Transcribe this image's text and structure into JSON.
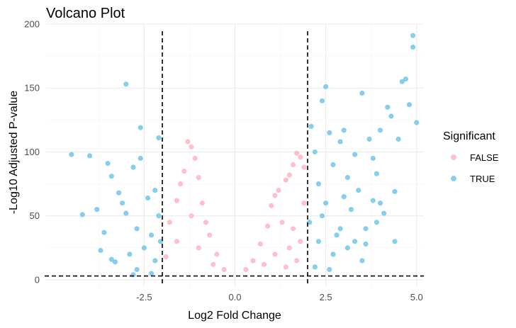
{
  "chart_data": {
    "type": "scatter",
    "title": "Volcano Plot",
    "xlabel": "Log2 Fold Change",
    "ylabel": "-Log10 Adjusted P-value",
    "xlim": [
      -5.2,
      5.2
    ],
    "ylim": [
      -5,
      200
    ],
    "x_ticks": [
      -2.5,
      0.0,
      2.5,
      5.0
    ],
    "x_tick_labels": [
      "-2.5",
      "0.0",
      "2.5",
      "5.0"
    ],
    "y_ticks": [
      0,
      50,
      100,
      150,
      200
    ],
    "y_tick_labels": [
      "0",
      "50",
      "100",
      "150",
      "200"
    ],
    "grid": true,
    "vlines": [
      -2,
      2
    ],
    "hline": 3,
    "legend": {
      "title": "Significant",
      "position": "right",
      "entries": [
        {
          "label": "FALSE",
          "color": "#ffc0cb"
        },
        {
          "label": "TRUE",
          "color": "#87ceeb"
        }
      ]
    },
    "series": [
      {
        "name": "FALSE",
        "color": "#ffc0cb",
        "points": [
          [
            -1.8,
            45
          ],
          [
            -1.6,
            62
          ],
          [
            -1.5,
            75
          ],
          [
            -1.4,
            85
          ],
          [
            -1.3,
            108
          ],
          [
            -1.2,
            104
          ],
          [
            -1.1,
            95
          ],
          [
            -1.0,
            80
          ],
          [
            -0.9,
            60
          ],
          [
            -0.8,
            45
          ],
          [
            -0.7,
            35
          ],
          [
            -0.5,
            20
          ],
          [
            -0.3,
            8
          ],
          [
            -1.6,
            30
          ],
          [
            -1.2,
            50
          ],
          [
            -1.9,
            18
          ],
          [
            -1.0,
            25
          ],
          [
            -0.6,
            12
          ],
          [
            0.3,
            8
          ],
          [
            0.5,
            15
          ],
          [
            0.7,
            28
          ],
          [
            0.9,
            42
          ],
          [
            1.0,
            58
          ],
          [
            1.1,
            66
          ],
          [
            1.2,
            70
          ],
          [
            1.4,
            78
          ],
          [
            1.5,
            82
          ],
          [
            1.6,
            90
          ],
          [
            1.7,
            99
          ],
          [
            1.8,
            96
          ],
          [
            1.9,
            88
          ],
          [
            1.3,
            45
          ],
          [
            1.6,
            40
          ],
          [
            1.8,
            30
          ],
          [
            1.1,
            20
          ],
          [
            1.5,
            25
          ],
          [
            1.9,
            60
          ],
          [
            0.8,
            12
          ],
          [
            1.4,
            10
          ],
          [
            1.7,
            15
          ]
        ]
      },
      {
        "name": "TRUE",
        "color": "#87ceeb",
        "points": [
          [
            -4.5,
            98
          ],
          [
            -4.2,
            51
          ],
          [
            -4.0,
            97
          ],
          [
            -3.8,
            55
          ],
          [
            -3.7,
            23
          ],
          [
            -3.6,
            37
          ],
          [
            -3.5,
            91
          ],
          [
            -3.4,
            81
          ],
          [
            -3.3,
            14
          ],
          [
            -3.2,
            68
          ],
          [
            -3.1,
            60
          ],
          [
            -3.0,
            153
          ],
          [
            -3.0,
            52
          ],
          [
            -2.9,
            20
          ],
          [
            -2.8,
            88
          ],
          [
            -2.7,
            40
          ],
          [
            -2.7,
            8
          ],
          [
            -2.6,
            119
          ],
          [
            -2.6,
            95
          ],
          [
            -2.5,
            25
          ],
          [
            -2.4,
            64
          ],
          [
            -2.3,
            35
          ],
          [
            -2.2,
            70
          ],
          [
            -2.2,
            15
          ],
          [
            -2.1,
            111
          ],
          [
            -2.1,
            50
          ],
          [
            -2.05,
            30
          ],
          [
            -2.3,
            5
          ],
          [
            -2.8,
            4
          ],
          [
            -3.4,
            16
          ],
          [
            2.05,
            45
          ],
          [
            2.1,
            120
          ],
          [
            2.2,
            100
          ],
          [
            2.3,
            75
          ],
          [
            2.4,
            140
          ],
          [
            2.5,
            151
          ],
          [
            2.5,
            60
          ],
          [
            2.6,
            115
          ],
          [
            2.7,
            90
          ],
          [
            2.8,
            35
          ],
          [
            2.9,
            108
          ],
          [
            3.0,
            117
          ],
          [
            3.1,
            80
          ],
          [
            3.2,
            55
          ],
          [
            3.3,
            98
          ],
          [
            3.4,
            70
          ],
          [
            3.5,
            146
          ],
          [
            3.6,
            40
          ],
          [
            3.7,
            110
          ],
          [
            3.8,
            95
          ],
          [
            3.9,
            83
          ],
          [
            4.0,
            117
          ],
          [
            4.1,
            52
          ],
          [
            4.2,
            135
          ],
          [
            4.3,
            128
          ],
          [
            4.4,
            69
          ],
          [
            4.5,
            110
          ],
          [
            4.6,
            155
          ],
          [
            4.7,
            157
          ],
          [
            4.8,
            137
          ],
          [
            4.9,
            191
          ],
          [
            4.9,
            182
          ],
          [
            5.0,
            123
          ],
          [
            2.3,
            30
          ],
          [
            2.7,
            20
          ],
          [
            3.1,
            25
          ],
          [
            3.5,
            15
          ],
          [
            2.2,
            10
          ],
          [
            2.6,
            8
          ],
          [
            3.3,
            30
          ],
          [
            3.9,
            45
          ],
          [
            4.4,
            30
          ],
          [
            3.6,
            28
          ],
          [
            4.0,
            60
          ],
          [
            2.4,
            50
          ],
          [
            3.0,
            65
          ],
          [
            2.9,
            40
          ],
          [
            3.8,
            62
          ]
        ]
      }
    ]
  }
}
